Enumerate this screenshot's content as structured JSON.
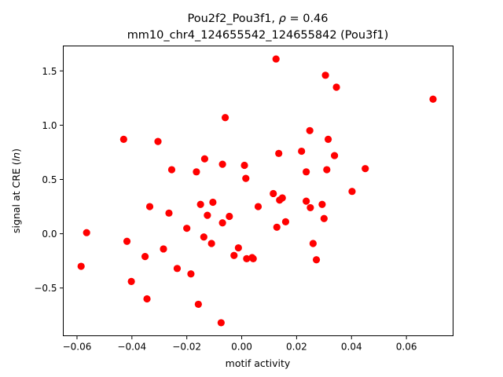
{
  "chart_data": {
    "type": "scatter",
    "title_line1_prefix": "Pou2f2_Pou3f1, ",
    "title_line1_rho": "ρ",
    "title_line1_suffix": " = 0.46",
    "title_line2": "mm10_chr4_124655542_124655842 (Pou3f1)",
    "xlabel": "motif activity",
    "ylabel_prefix": "signal at CRE (",
    "ylabel_italic": "ln",
    "ylabel_suffix": ")",
    "xlim": [
      -0.065,
      0.077
    ],
    "ylim": [
      -0.94,
      1.73
    ],
    "xticks": [
      -0.06,
      -0.04,
      -0.02,
      0.0,
      0.02,
      0.04,
      0.06
    ],
    "xtick_labels": [
      "−0.06",
      "−0.04",
      "−0.02",
      "0.00",
      "0.02",
      "0.04",
      "0.06"
    ],
    "yticks": [
      -0.5,
      0.0,
      0.5,
      1.0,
      1.5
    ],
    "ytick_labels": [
      "−0.5",
      "0.0",
      "0.5",
      "1.0",
      "1.5"
    ],
    "grid": false,
    "marker_color": "#ff0000",
    "points": [
      {
        "x": 0.0125,
        "y": 1.61
      },
      {
        "x": 0.0305,
        "y": 1.46
      },
      {
        "x": 0.0345,
        "y": 1.35
      },
      {
        "x": 0.0697,
        "y": 1.24
      },
      {
        "x": -0.006,
        "y": 1.07
      },
      {
        "x": 0.0248,
        "y": 0.95
      },
      {
        "x": -0.043,
        "y": 0.87
      },
      {
        "x": 0.0315,
        "y": 0.87
      },
      {
        "x": -0.0305,
        "y": 0.85
      },
      {
        "x": 0.0218,
        "y": 0.76
      },
      {
        "x": 0.0135,
        "y": 0.74
      },
      {
        "x": 0.0338,
        "y": 0.72
      },
      {
        "x": -0.0135,
        "y": 0.69
      },
      {
        "x": -0.007,
        "y": 0.64
      },
      {
        "x": 0.001,
        "y": 0.63
      },
      {
        "x": 0.045,
        "y": 0.6
      },
      {
        "x": -0.0255,
        "y": 0.59
      },
      {
        "x": 0.031,
        "y": 0.59
      },
      {
        "x": -0.0165,
        "y": 0.57
      },
      {
        "x": 0.0235,
        "y": 0.57
      },
      {
        "x": 0.0015,
        "y": 0.51
      },
      {
        "x": 0.0402,
        "y": 0.39
      },
      {
        "x": 0.0115,
        "y": 0.37
      },
      {
        "x": 0.0148,
        "y": 0.33
      },
      {
        "x": 0.0138,
        "y": 0.31
      },
      {
        "x": 0.0235,
        "y": 0.3
      },
      {
        "x": -0.0105,
        "y": 0.29
      },
      {
        "x": 0.0293,
        "y": 0.27
      },
      {
        "x": -0.015,
        "y": 0.27
      },
      {
        "x": -0.0335,
        "y": 0.25
      },
      {
        "x": 0.006,
        "y": 0.25
      },
      {
        "x": 0.025,
        "y": 0.24
      },
      {
        "x": -0.0265,
        "y": 0.19
      },
      {
        "x": -0.0125,
        "y": 0.17
      },
      {
        "x": -0.0045,
        "y": 0.16
      },
      {
        "x": 0.03,
        "y": 0.14
      },
      {
        "x": 0.016,
        "y": 0.11
      },
      {
        "x": -0.007,
        "y": 0.1
      },
      {
        "x": 0.0128,
        "y": 0.06
      },
      {
        "x": -0.02,
        "y": 0.05
      },
      {
        "x": -0.0565,
        "y": 0.01
      },
      {
        "x": -0.0138,
        "y": -0.03
      },
      {
        "x": -0.0418,
        "y": -0.07
      },
      {
        "x": 0.026,
        "y": -0.09
      },
      {
        "x": -0.011,
        "y": -0.09
      },
      {
        "x": -0.0012,
        "y": -0.13
      },
      {
        "x": -0.0285,
        "y": -0.14
      },
      {
        "x": -0.0028,
        "y": -0.2
      },
      {
        "x": -0.0352,
        "y": -0.21
      },
      {
        "x": 0.0018,
        "y": -0.23
      },
      {
        "x": 0.0042,
        "y": -0.23
      },
      {
        "x": 0.0038,
        "y": -0.22
      },
      {
        "x": 0.0272,
        "y": -0.24
      },
      {
        "x": -0.0585,
        "y": -0.3
      },
      {
        "x": -0.0235,
        "y": -0.32
      },
      {
        "x": -0.0185,
        "y": -0.37
      },
      {
        "x": -0.0402,
        "y": -0.44
      },
      {
        "x": -0.0345,
        "y": -0.6
      },
      {
        "x": -0.0158,
        "y": -0.65
      },
      {
        "x": -0.0075,
        "y": -0.82
      }
    ]
  }
}
